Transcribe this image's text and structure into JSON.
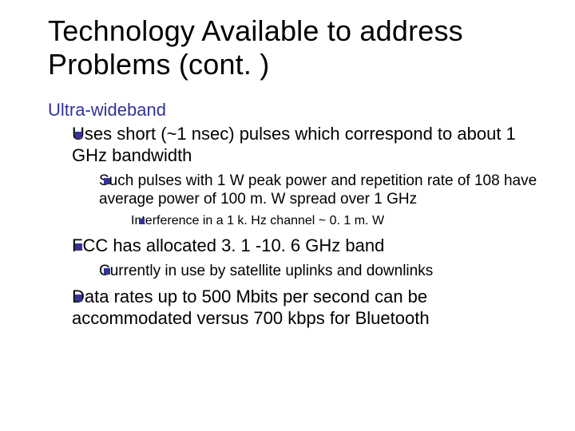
{
  "slide": {
    "title": "Technology Available to address Problems (cont. )",
    "section_heading": "Ultra-wideband",
    "bullets": [
      {
        "text": "Uses short (~1 nsec) pulses which correspond to about 1 GHz bandwidth",
        "children": [
          {
            "text": "Such pulses with 1 W peak power and repetition rate of 108 have average power of 100 m. W spread over 1 GHz",
            "children": [
              {
                "text": "Interference in a 1 k. Hz channel ~ 0. 1 m. W"
              }
            ]
          }
        ]
      },
      {
        "text": "FCC has allocated 3. 1 -10. 6 GHz band",
        "children": [
          {
            "text": "Currently in use by satellite uplinks and downlinks"
          }
        ]
      },
      {
        "text": "Data rates up to 500 Mbits per second can be accommodated versus 700 kbps for Bluetooth"
      }
    ]
  },
  "style": {
    "title_color": "#000000",
    "heading_color": "#333399",
    "body_color": "#000000",
    "bullet_color": "#333399",
    "background_color": "#ffffff",
    "title_fontsize_pt": 36,
    "heading_fontsize_pt": 22,
    "lvl1_fontsize_pt": 22,
    "lvl2_fontsize_pt": 19,
    "lvl3_fontsize_pt": 16,
    "font_family_title": "Arial",
    "font_family_body": "Verdana"
  }
}
